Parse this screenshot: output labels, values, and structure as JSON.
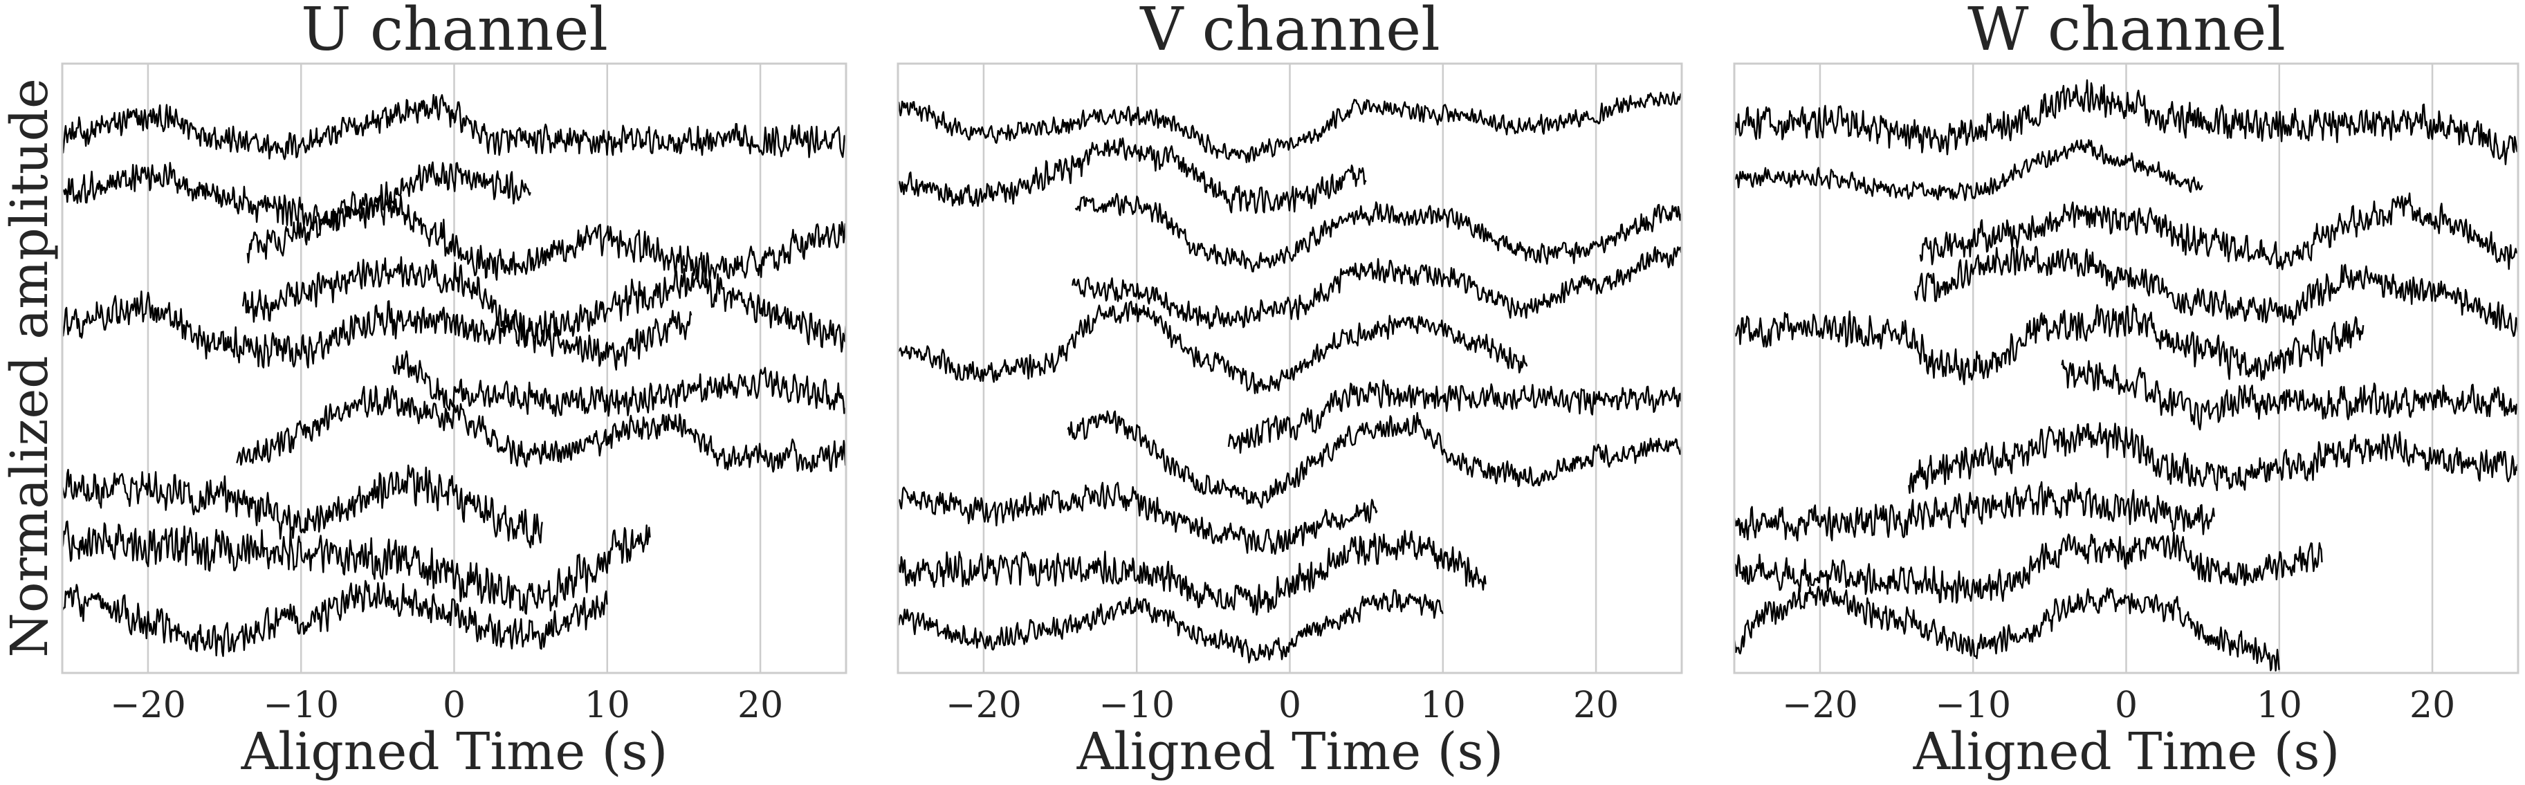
{
  "chart_data": [
    {
      "type": "line",
      "title": "U channel",
      "xlabel": "Aligned Time (s)",
      "ylabel": "Normalized amplitude",
      "xlim": [
        -25.6,
        25.6
      ],
      "ylim": [
        0,
        11
      ],
      "xticks": [
        -20,
        -10,
        0,
        10,
        20
      ],
      "xtick_labels": [
        "−20",
        "−10",
        "0",
        "10",
        "20"
      ],
      "grid": "vertical",
      "line_color": "#000000",
      "traces": [
        {
          "noise": 0.4,
          "points": [
            [
              -25.6,
              9.7
            ],
            [
              -20,
              10.0
            ],
            [
              -12,
              9.5
            ],
            [
              -1,
              10.2
            ],
            [
              3,
              9.6
            ],
            [
              25.6,
              9.6
            ]
          ]
        },
        {
          "noise": 0.4,
          "points": [
            [
              -25.6,
              8.7
            ],
            [
              -20,
              9.0
            ],
            [
              -12,
              8.4
            ],
            [
              -8,
              8.2
            ],
            [
              -1,
              9.0
            ],
            [
              5,
              8.7
            ]
          ]
        },
        {
          "noise": 0.45,
          "points": [
            [
              -13.5,
              7.7
            ],
            [
              -5,
              8.4
            ],
            [
              3,
              7.4
            ],
            [
              10,
              7.8
            ],
            [
              17,
              7.3
            ],
            [
              25.6,
              7.9
            ]
          ]
        },
        {
          "noise": 0.45,
          "points": [
            [
              -13.8,
              6.6
            ],
            [
              -5,
              7.2
            ],
            [
              0,
              7.1
            ],
            [
              5,
              6.2
            ],
            [
              15,
              7.0
            ],
            [
              25.6,
              6.1
            ]
          ]
        },
        {
          "noise": 0.45,
          "points": [
            [
              -25.6,
              6.3
            ],
            [
              -20,
              6.6
            ],
            [
              -15,
              5.9
            ],
            [
              -10,
              5.8
            ],
            [
              -5,
              6.4
            ],
            [
              3,
              6.2
            ],
            [
              10,
              5.8
            ],
            [
              15.5,
              6.3
            ]
          ]
        },
        {
          "noise": 0.4,
          "points": [
            [
              -4,
              5.6
            ],
            [
              0,
              5.0
            ],
            [
              10,
              4.9
            ],
            [
              20,
              5.2
            ],
            [
              25.6,
              5.0
            ]
          ]
        },
        {
          "noise": 0.4,
          "points": [
            [
              -14.2,
              3.9
            ],
            [
              -5,
              4.9
            ],
            [
              0,
              4.6
            ],
            [
              5,
              3.9
            ],
            [
              14,
              4.5
            ],
            [
              18,
              3.9
            ],
            [
              25.6,
              3.9
            ]
          ]
        },
        {
          "noise": 0.5,
          "points": [
            [
              -25.6,
              3.4
            ],
            [
              -15,
              3.2
            ],
            [
              -10,
              2.7
            ],
            [
              -3,
              3.4
            ],
            [
              5.8,
              2.6
            ]
          ]
        },
        {
          "noise": 0.55,
          "points": [
            [
              -25.6,
              2.4
            ],
            [
              -15,
              2.2
            ],
            [
              -5,
              2.1
            ],
            [
              5,
              1.4
            ],
            [
              12.8,
              2.4
            ]
          ]
        },
        {
          "noise": 0.45,
          "points": [
            [
              -25.6,
              1.3
            ],
            [
              -15,
              0.6
            ],
            [
              -10,
              1.0
            ],
            [
              -5,
              1.4
            ],
            [
              5,
              0.7
            ],
            [
              10,
              1.2
            ]
          ]
        }
      ]
    },
    {
      "type": "line",
      "title": "V channel",
      "xlabel": "Aligned Time (s)",
      "xlim": [
        -25.6,
        25.6
      ],
      "ylim": [
        0,
        11
      ],
      "xticks": [
        -20,
        -10,
        0,
        10,
        20
      ],
      "xtick_labels": [
        "−20",
        "−10",
        "0",
        "10",
        "20"
      ],
      "grid": "vertical",
      "line_color": "#000000",
      "traces": [
        {
          "noise": 0.25,
          "points": [
            [
              -25.6,
              10.23
            ],
            [
              -20,
              9.73
            ],
            [
              -10,
              10.08
            ],
            [
              -3,
              9.37
            ],
            [
              0,
              9.51
            ],
            [
              5,
              10.23
            ],
            [
              10,
              10.08
            ],
            [
              15,
              9.87
            ],
            [
              25.6,
              10.37
            ]
          ]
        },
        {
          "noise": 0.35,
          "points": [
            [
              -25.6,
              8.79
            ],
            [
              -20,
              8.58
            ],
            [
              -15,
              9.01
            ],
            [
              -12,
              9.51
            ],
            [
              -8,
              9.3
            ],
            [
              -3,
              8.51
            ],
            [
              0,
              8.51
            ],
            [
              5,
              9.01
            ]
          ]
        },
        {
          "noise": 0.3,
          "points": [
            [
              -14,
              8.43
            ],
            [
              -10,
              8.43
            ],
            [
              -5,
              7.57
            ],
            [
              -2,
              7.43
            ],
            [
              5,
              8.29
            ],
            [
              10,
              8.22
            ],
            [
              15,
              7.64
            ],
            [
              18,
              7.57
            ],
            [
              25.6,
              8.29
            ]
          ]
        },
        {
          "noise": 0.3,
          "points": [
            [
              -14.2,
              7.0
            ],
            [
              -10,
              6.86
            ],
            [
              -5,
              6.43
            ],
            [
              0,
              6.57
            ],
            [
              5,
              7.29
            ],
            [
              10,
              7.14
            ],
            [
              15,
              6.57
            ],
            [
              20,
              7.07
            ],
            [
              25.6,
              7.57
            ]
          ]
        },
        {
          "noise": 0.3,
          "points": [
            [
              -25.6,
              5.85
            ],
            [
              -20,
              5.42
            ],
            [
              -16,
              5.56
            ],
            [
              -12,
              6.5
            ],
            [
              -10,
              6.5
            ],
            [
              -5,
              5.56
            ],
            [
              -2,
              5.2
            ],
            [
              5,
              6.14
            ],
            [
              8,
              6.35
            ],
            [
              12,
              6.0
            ],
            [
              15.5,
              5.56
            ]
          ]
        },
        {
          "noise": 0.35,
          "points": [
            [
              -4,
              4.2
            ],
            [
              0,
              4.42
            ],
            [
              5,
              5.06
            ],
            [
              10,
              4.99
            ],
            [
              20,
              4.92
            ],
            [
              25.6,
              4.99
            ]
          ]
        },
        {
          "noise": 0.3,
          "points": [
            [
              -14.5,
              4.34
            ],
            [
              -12,
              4.56
            ],
            [
              -5,
              3.34
            ],
            [
              -2,
              3.2
            ],
            [
              5,
              4.34
            ],
            [
              8,
              4.49
            ],
            [
              12,
              3.7
            ],
            [
              16,
              3.56
            ],
            [
              20,
              3.91
            ],
            [
              25.6,
              4.13
            ]
          ]
        },
        {
          "noise": 0.35,
          "points": [
            [
              -25.6,
              3.2
            ],
            [
              -20,
              2.91
            ],
            [
              -12,
              3.2
            ],
            [
              -5,
              2.55
            ],
            [
              -2,
              2.34
            ],
            [
              5.7,
              2.98
            ]
          ]
        },
        {
          "noise": 0.45,
          "points": [
            [
              -25.6,
              1.83
            ],
            [
              -15,
              1.9
            ],
            [
              -10,
              1.9
            ],
            [
              -5,
              1.33
            ],
            [
              -2,
              1.4
            ],
            [
              5,
              2.26
            ],
            [
              8,
              2.33
            ],
            [
              12.8,
              1.69
            ]
          ]
        },
        {
          "noise": 0.3,
          "points": [
            [
              -25.6,
              0.97
            ],
            [
              -20,
              0.61
            ],
            [
              -15,
              0.83
            ],
            [
              -10,
              1.19
            ],
            [
              -5,
              0.61
            ],
            [
              -2,
              0.33
            ],
            [
              3,
              0.9
            ],
            [
              6,
              1.33
            ],
            [
              10,
              1.19
            ]
          ]
        }
      ]
    },
    {
      "type": "line",
      "title": "W channel",
      "xlabel": "Aligned Time (s)",
      "xlim": [
        -25.6,
        25.6
      ],
      "ylim": [
        0,
        11
      ],
      "xticks": [
        -20,
        -10,
        0,
        10,
        20
      ],
      "xtick_labels": [
        "−20",
        "−10",
        "0",
        "10",
        "20"
      ],
      "grid": "vertical",
      "line_color": "#000000",
      "traces": [
        {
          "noise": 0.45,
          "points": [
            [
              -25.6,
              9.87
            ],
            [
              -20,
              9.94
            ],
            [
              -12,
              9.65
            ],
            [
              -8,
              9.87
            ],
            [
              -3,
              10.37
            ],
            [
              0,
              10.23
            ],
            [
              5,
              9.94
            ],
            [
              10,
              9.87
            ],
            [
              20,
              9.94
            ],
            [
              25.6,
              9.51
            ]
          ]
        },
        {
          "noise": 0.25,
          "points": [
            [
              -25.6,
              8.94
            ],
            [
              -20,
              8.94
            ],
            [
              -15,
              8.72
            ],
            [
              -10,
              8.69
            ],
            [
              -5,
              9.3
            ],
            [
              -3,
              9.51
            ],
            [
              0,
              9.22
            ],
            [
              5,
              8.79
            ]
          ]
        },
        {
          "noise": 0.4,
          "points": [
            [
              -13.5,
              7.57
            ],
            [
              -8,
              7.93
            ],
            [
              -3,
              8.29
            ],
            [
              0,
              8.22
            ],
            [
              5,
              7.79
            ],
            [
              10,
              7.5
            ],
            [
              15,
              8.15
            ],
            [
              18,
              8.43
            ],
            [
              20,
              8.22
            ],
            [
              25.6,
              7.5
            ]
          ]
        },
        {
          "noise": 0.4,
          "points": [
            [
              -13.8,
              6.93
            ],
            [
              -8,
              7.43
            ],
            [
              -3,
              7.43
            ],
            [
              0,
              7.14
            ],
            [
              5,
              6.64
            ],
            [
              10,
              6.5
            ],
            [
              15,
              7.14
            ],
            [
              20,
              6.86
            ],
            [
              25.6,
              6.35
            ]
          ]
        },
        {
          "noise": 0.45,
          "points": [
            [
              -25.6,
              6.14
            ],
            [
              -20,
              6.21
            ],
            [
              -15,
              6.14
            ],
            [
              -12,
              5.56
            ],
            [
              -10,
              5.49
            ],
            [
              -5,
              6.28
            ],
            [
              0,
              6.35
            ],
            [
              5,
              5.85
            ],
            [
              8,
              5.49
            ],
            [
              12,
              5.85
            ],
            [
              15.5,
              6.21
            ]
          ]
        },
        {
          "noise": 0.45,
          "points": [
            [
              -4.2,
              5.42
            ],
            [
              0,
              5.28
            ],
            [
              3,
              4.85
            ],
            [
              5,
              4.7
            ],
            [
              8,
              4.92
            ],
            [
              15,
              4.92
            ],
            [
              25.6,
              4.92
            ]
          ]
        },
        {
          "noise": 0.45,
          "points": [
            [
              -14.2,
              3.56
            ],
            [
              -8,
              3.91
            ],
            [
              -3,
              4.27
            ],
            [
              0,
              4.2
            ],
            [
              3,
              3.7
            ],
            [
              5,
              3.48
            ],
            [
              10,
              3.7
            ],
            [
              15,
              3.99
            ],
            [
              18,
              4.06
            ],
            [
              20,
              3.84
            ],
            [
              25.6,
              3.77
            ]
          ]
        },
        {
          "noise": 0.45,
          "points": [
            [
              -25.6,
              2.7
            ],
            [
              -20,
              2.7
            ],
            [
              -15,
              2.77
            ],
            [
              -10,
              2.98
            ],
            [
              -5,
              3.12
            ],
            [
              0,
              2.98
            ],
            [
              5.8,
              2.77
            ]
          ]
        },
        {
          "noise": 0.45,
          "points": [
            [
              -25.6,
              1.91
            ],
            [
              -20,
              1.76
            ],
            [
              -15,
              1.62
            ],
            [
              -10,
              1.55
            ],
            [
              -7,
              1.69
            ],
            [
              -5,
              2.19
            ],
            [
              0,
              2.19
            ],
            [
              3,
              2.26
            ],
            [
              5,
              1.91
            ],
            [
              8,
              1.76
            ],
            [
              12.8,
              2.05
            ]
          ]
        },
        {
          "noise": 0.35,
          "points": [
            [
              -25.6,
              0.54
            ],
            [
              -23,
              1.12
            ],
            [
              -20,
              1.4
            ],
            [
              -15,
              0.97
            ],
            [
              -10,
              0.47
            ],
            [
              -7,
              0.69
            ],
            [
              -3,
              1.26
            ],
            [
              0,
              1.33
            ],
            [
              3,
              1.12
            ],
            [
              6,
              0.61
            ],
            [
              10,
              0.26
            ]
          ]
        }
      ]
    }
  ]
}
